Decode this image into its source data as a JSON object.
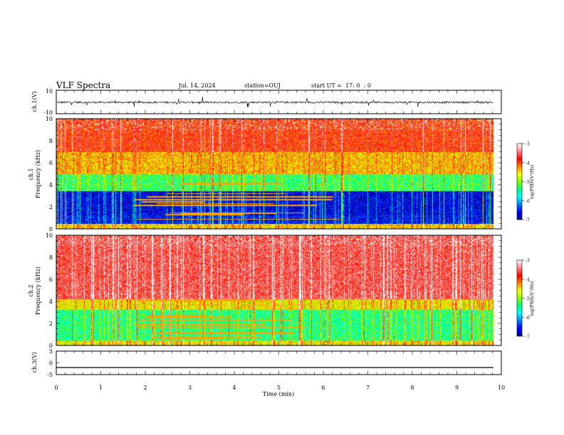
{
  "header": {
    "title": "VLF Spectra",
    "date": "Jul. 14, 2024",
    "station": "station=OUJ",
    "start_time": "start UT =  17: 0  : 0"
  },
  "chart_data": [
    {
      "type": "line",
      "panel": "ch1-waveform",
      "ylabel": "ch.1(V)",
      "ylim": [
        -10,
        10
      ],
      "yticks": [
        "10",
        "-10"
      ],
      "xlim": [
        0,
        10
      ],
      "description_baseline": -0.3,
      "series_color": "#000000"
    },
    {
      "type": "heatmap",
      "panel": "ch1-spectrogram",
      "ylabel": "ch.1\nFrequency (kHz)",
      "ylim": [
        0,
        10
      ],
      "yticks": [
        "0",
        "2",
        "4",
        "6",
        "8",
        "10"
      ],
      "xlim": [
        0,
        9.82
      ],
      "colorbar": {
        "label": "log(PSD)(V²/Hz)",
        "range": [
          -7,
          -3
        ],
        "ticks": [
          "-3",
          "-4",
          "-5",
          "-6",
          "-7"
        ]
      },
      "bands": [
        {
          "from": 0,
          "to": 0.4,
          "level": -4.5
        },
        {
          "from": 0.4,
          "to": 1.2,
          "level": -6.6
        },
        {
          "from": 1.2,
          "to": 3.4,
          "level": -6.7
        },
        {
          "from": 3.4,
          "to": 5.0,
          "level": -5.3
        },
        {
          "from": 5.0,
          "to": 7.0,
          "level": -4.4
        },
        {
          "from": 7.0,
          "to": 10.0,
          "level": -3.9
        }
      ]
    },
    {
      "type": "heatmap",
      "panel": "ch2-spectrogram",
      "ylabel": "ch.2\nFrequency (kHz)",
      "ylim": [
        0,
        10
      ],
      "yticks": [
        "0",
        "2",
        "4",
        "6",
        "8",
        "10"
      ],
      "xlim": [
        0,
        9.82
      ],
      "colorbar": {
        "label": "log(PSD)(V²/Hz)",
        "range": [
          -7,
          -3
        ],
        "ticks": [
          "-3",
          "-4",
          "-5",
          "-6",
          "-7"
        ]
      },
      "bands": [
        {
          "from": 0,
          "to": 0.4,
          "level": -4.6
        },
        {
          "from": 0.4,
          "to": 3.2,
          "level": -5.4
        },
        {
          "from": 3.2,
          "to": 4.2,
          "level": -4.6
        },
        {
          "from": 4.2,
          "to": 10.0,
          "level": -3.6
        }
      ]
    },
    {
      "type": "line",
      "panel": "ch3-waveform",
      "ylabel": "ch.3(V)",
      "ylim": [
        -5,
        5
      ],
      "yticks": [
        "5",
        "0",
        "-5"
      ],
      "xlim": [
        0,
        10
      ],
      "x": [
        0,
        9.82
      ],
      "y": [
        -2,
        -2
      ],
      "xlabel": "Time (min)",
      "xticks": [
        "0",
        "1",
        "2",
        "3",
        "4",
        "5",
        "6",
        "7",
        "8",
        "9",
        "10"
      ]
    }
  ],
  "colors": {
    "colormap": [
      "#000080",
      "#0000ff",
      "#0080ff",
      "#00ffff",
      "#00ff80",
      "#80ff00",
      "#ffff00",
      "#ff8000",
      "#ff0000",
      "#ff8080",
      "#ffffff"
    ]
  }
}
